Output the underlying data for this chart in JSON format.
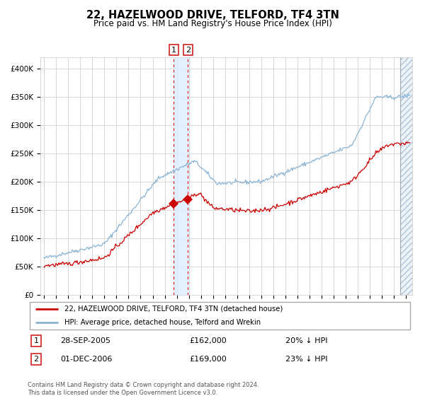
{
  "title": "22, HAZELWOOD DRIVE, TELFORD, TF4 3TN",
  "subtitle": "Price paid vs. HM Land Registry's House Price Index (HPI)",
  "hpi_color": "#8ab4d4",
  "price_color": "#cc0000",
  "sale1_date": 2005.75,
  "sale1_price": 162000,
  "sale2_date": 2006.92,
  "sale2_price": 169000,
  "ylim": [
    0,
    420000
  ],
  "xlim_start": 1994.7,
  "xlim_end": 2025.5,
  "legend_label_red": "22, HAZELWOOD DRIVE, TELFORD, TF4 3TN (detached house)",
  "legend_label_blue": "HPI: Average price, detached house, Telford and Wrekin",
  "annotation1_label": "28-SEP-2005",
  "annotation1_price": "£162,000",
  "annotation1_hpi": "20% ↓ HPI",
  "annotation2_label": "01-DEC-2006",
  "annotation2_price": "£169,000",
  "annotation2_hpi": "23% ↓ HPI",
  "footer": "Contains HM Land Registry data © Crown copyright and database right 2024.\nThis data is licensed under the Open Government Licence v3.0.",
  "yticks": [
    0,
    50000,
    100000,
    150000,
    200000,
    250000,
    300000,
    350000,
    400000
  ],
  "ytick_labels": [
    "£0",
    "£50K",
    "£100K",
    "£150K",
    "£200K",
    "£250K",
    "£300K",
    "£350K",
    "£400K"
  ],
  "hatch_start": 2024.5,
  "hatch_end": 2025.5,
  "right_line_x": 2024.5
}
